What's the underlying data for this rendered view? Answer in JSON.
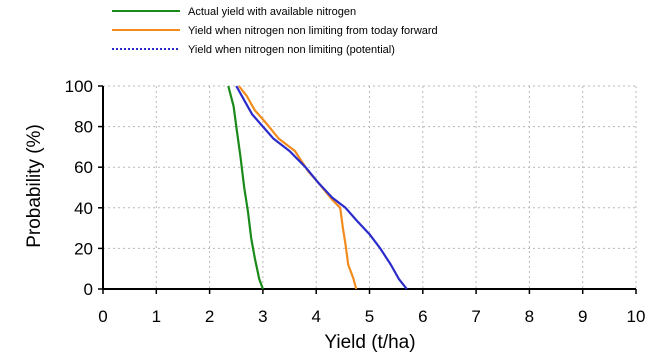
{
  "chart_data": {
    "type": "line",
    "xlabel": "Yield (t/ha)",
    "ylabel": "Probability (%)",
    "xlim": [
      0,
      10
    ],
    "ylim": [
      0,
      100
    ],
    "x_ticks": [
      "0",
      "1",
      "2",
      "3",
      "4",
      "5",
      "6",
      "7",
      "8",
      "9",
      "10"
    ],
    "y_ticks": [
      "0",
      "20",
      "40",
      "60",
      "80",
      "100"
    ],
    "grid": true,
    "legend_position": "top",
    "series": [
      {
        "name": "Actual yield with available nitrogen",
        "color": "#1a8a1a",
        "style": "solid",
        "points": [
          [
            2.35,
            100
          ],
          [
            2.45,
            90
          ],
          [
            2.5,
            80
          ],
          [
            2.58,
            65
          ],
          [
            2.65,
            50
          ],
          [
            2.72,
            38
          ],
          [
            2.78,
            25
          ],
          [
            2.85,
            15
          ],
          [
            2.93,
            5
          ],
          [
            3.0,
            0
          ]
        ]
      },
      {
        "name": "Yield when nitrogen non limiting from today forward",
        "color": "#f28c1e",
        "style": "solid",
        "points": [
          [
            2.55,
            100
          ],
          [
            2.7,
            95
          ],
          [
            2.85,
            88
          ],
          [
            3.05,
            82
          ],
          [
            3.3,
            74
          ],
          [
            3.6,
            68
          ],
          [
            3.85,
            58
          ],
          [
            4.05,
            52
          ],
          [
            4.3,
            44
          ],
          [
            4.45,
            40
          ],
          [
            4.5,
            30
          ],
          [
            4.55,
            22
          ],
          [
            4.6,
            12
          ],
          [
            4.7,
            5
          ],
          [
            4.75,
            0
          ]
        ]
      },
      {
        "name": "Yield when nitrogen non limiting (potential)",
        "color": "#2b2bcc",
        "style": "solid",
        "points": [
          [
            2.5,
            100
          ],
          [
            2.65,
            93
          ],
          [
            2.8,
            86
          ],
          [
            3.0,
            80
          ],
          [
            3.2,
            74
          ],
          [
            3.5,
            68
          ],
          [
            3.8,
            60
          ],
          [
            4.05,
            52
          ],
          [
            4.3,
            45
          ],
          [
            4.55,
            40
          ],
          [
            4.75,
            34
          ],
          [
            5.0,
            27
          ],
          [
            5.2,
            20
          ],
          [
            5.4,
            12
          ],
          [
            5.55,
            5
          ],
          [
            5.7,
            0
          ]
        ]
      }
    ]
  }
}
